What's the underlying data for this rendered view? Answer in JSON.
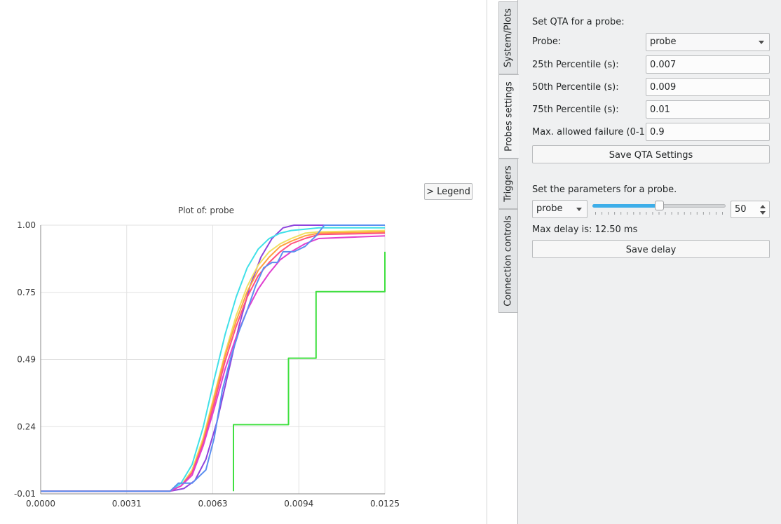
{
  "legend_button": "> Legend",
  "tabs": [
    "System/Plots",
    "Probes settings",
    "Triggers",
    "Connection controls"
  ],
  "qta": {
    "heading": "Set QTA for a probe:",
    "probe_label": "Probe:",
    "probe_value": "probe",
    "p25_label": "25th Percentile (s):",
    "p25_value": "0.007",
    "p50_label": "50th Percentile (s):",
    "p50_value": "0.009",
    "p75_label": "75th Percentile (s):",
    "p75_value": "0.01",
    "max_fail_label": "Max. allowed failure (0-1):",
    "max_fail_value": "0.9",
    "save_label": "Save QTA Settings"
  },
  "params": {
    "heading": "Set the parameters for a probe.",
    "probe_value": "probe",
    "slider_value": 50,
    "slider_max": 100,
    "spin_value": "50",
    "max_delay_text": "Max delay is: 12.50 ms",
    "save_label": "Save delay"
  },
  "colors": {
    "accent": "#3daee9",
    "panel_bg": "#eff0f1"
  },
  "chart_data": {
    "type": "line",
    "title": "Plot of: probe",
    "xlabel": "",
    "ylabel": "",
    "xlim": [
      0,
      0.0125
    ],
    "ylim": [
      -0.01,
      1.0
    ],
    "xticks": [
      "0.0000",
      "0.0031",
      "0.0063",
      "0.0094",
      "0.0125"
    ],
    "yticks": [
      "1.00",
      "0.75",
      "0.49",
      "0.24",
      "-0.01"
    ],
    "grid": true,
    "series": [
      {
        "color": "#8e44dd",
        "x": [
          0,
          0.0047,
          0.0052,
          0.0056,
          0.006,
          0.0064,
          0.0068,
          0.0072,
          0.0076,
          0.008,
          0.0084,
          0.0088,
          0.0092,
          0.0096,
          0.01,
          0.0125
        ],
        "y": [
          0,
          0,
          0.01,
          0.04,
          0.12,
          0.26,
          0.44,
          0.62,
          0.77,
          0.88,
          0.95,
          0.99,
          1.0,
          1.0,
          1.0,
          1.0
        ]
      },
      {
        "color": "#40e0e8",
        "x": [
          0,
          0.0047,
          0.0051,
          0.0055,
          0.0059,
          0.0063,
          0.0067,
          0.0071,
          0.0075,
          0.0079,
          0.0083,
          0.0087,
          0.0091,
          0.0096,
          0.0101,
          0.0125
        ],
        "y": [
          0,
          0,
          0.03,
          0.1,
          0.24,
          0.42,
          0.59,
          0.73,
          0.84,
          0.91,
          0.95,
          0.97,
          0.98,
          0.985,
          0.99,
          0.99
        ]
      },
      {
        "color": "#f0e060",
        "x": [
          0,
          0.0047,
          0.0051,
          0.0055,
          0.0059,
          0.0063,
          0.0067,
          0.0071,
          0.0075,
          0.0079,
          0.0083,
          0.0087,
          0.0091,
          0.0096,
          0.0101,
          0.0125
        ],
        "y": [
          0,
          0,
          0.02,
          0.08,
          0.2,
          0.36,
          0.52,
          0.66,
          0.77,
          0.85,
          0.9,
          0.93,
          0.95,
          0.97,
          0.975,
          0.98
        ]
      },
      {
        "color": "#ffa040",
        "x": [
          0,
          0.0047,
          0.0051,
          0.0055,
          0.0059,
          0.0063,
          0.0067,
          0.0071,
          0.0075,
          0.0079,
          0.0083,
          0.0087,
          0.0091,
          0.0096,
          0.0101,
          0.0125
        ],
        "y": [
          0,
          0,
          0.02,
          0.07,
          0.19,
          0.35,
          0.51,
          0.64,
          0.75,
          0.83,
          0.88,
          0.92,
          0.94,
          0.96,
          0.97,
          0.975
        ]
      },
      {
        "color": "#ff5080",
        "x": [
          0,
          0.0047,
          0.0051,
          0.0055,
          0.0059,
          0.0063,
          0.0067,
          0.0071,
          0.0075,
          0.0079,
          0.0083,
          0.0087,
          0.0091,
          0.0096,
          0.0101,
          0.0125
        ],
        "y": [
          0,
          0,
          0.02,
          0.07,
          0.18,
          0.33,
          0.49,
          0.62,
          0.73,
          0.81,
          0.86,
          0.9,
          0.93,
          0.95,
          0.965,
          0.97
        ]
      },
      {
        "color": "#e040d0",
        "x": [
          0,
          0.0047,
          0.0051,
          0.0055,
          0.0059,
          0.0063,
          0.0067,
          0.0071,
          0.0075,
          0.0079,
          0.0083,
          0.0087,
          0.0091,
          0.0096,
          0.0101,
          0.0125
        ],
        "y": [
          0,
          0,
          0.02,
          0.06,
          0.17,
          0.31,
          0.46,
          0.58,
          0.68,
          0.76,
          0.82,
          0.87,
          0.9,
          0.93,
          0.95,
          0.96
        ]
      },
      {
        "color": "#5b8ff0",
        "x": [
          0,
          0.0047,
          0.005,
          0.0052,
          0.0055,
          0.006,
          0.0063,
          0.0066,
          0.0069,
          0.0072,
          0.0075,
          0.0078,
          0.0081,
          0.0084,
          0.0086,
          0.0088,
          0.0092,
          0.0096,
          0.01,
          0.0103,
          0.0125
        ],
        "y": [
          0,
          0,
          0.03,
          0.03,
          0.03,
          0.08,
          0.2,
          0.38,
          0.5,
          0.6,
          0.68,
          0.77,
          0.84,
          0.86,
          0.86,
          0.9,
          0.9,
          0.92,
          0.96,
          1.0,
          1.0
        ]
      },
      {
        "color": "#40e040",
        "x": [
          0.007,
          0.007,
          0.009,
          0.009,
          0.01,
          0.01,
          0.0125,
          0.0125
        ],
        "y": [
          0,
          0.25,
          0.25,
          0.5,
          0.5,
          0.75,
          0.75,
          0.9
        ]
      }
    ]
  }
}
